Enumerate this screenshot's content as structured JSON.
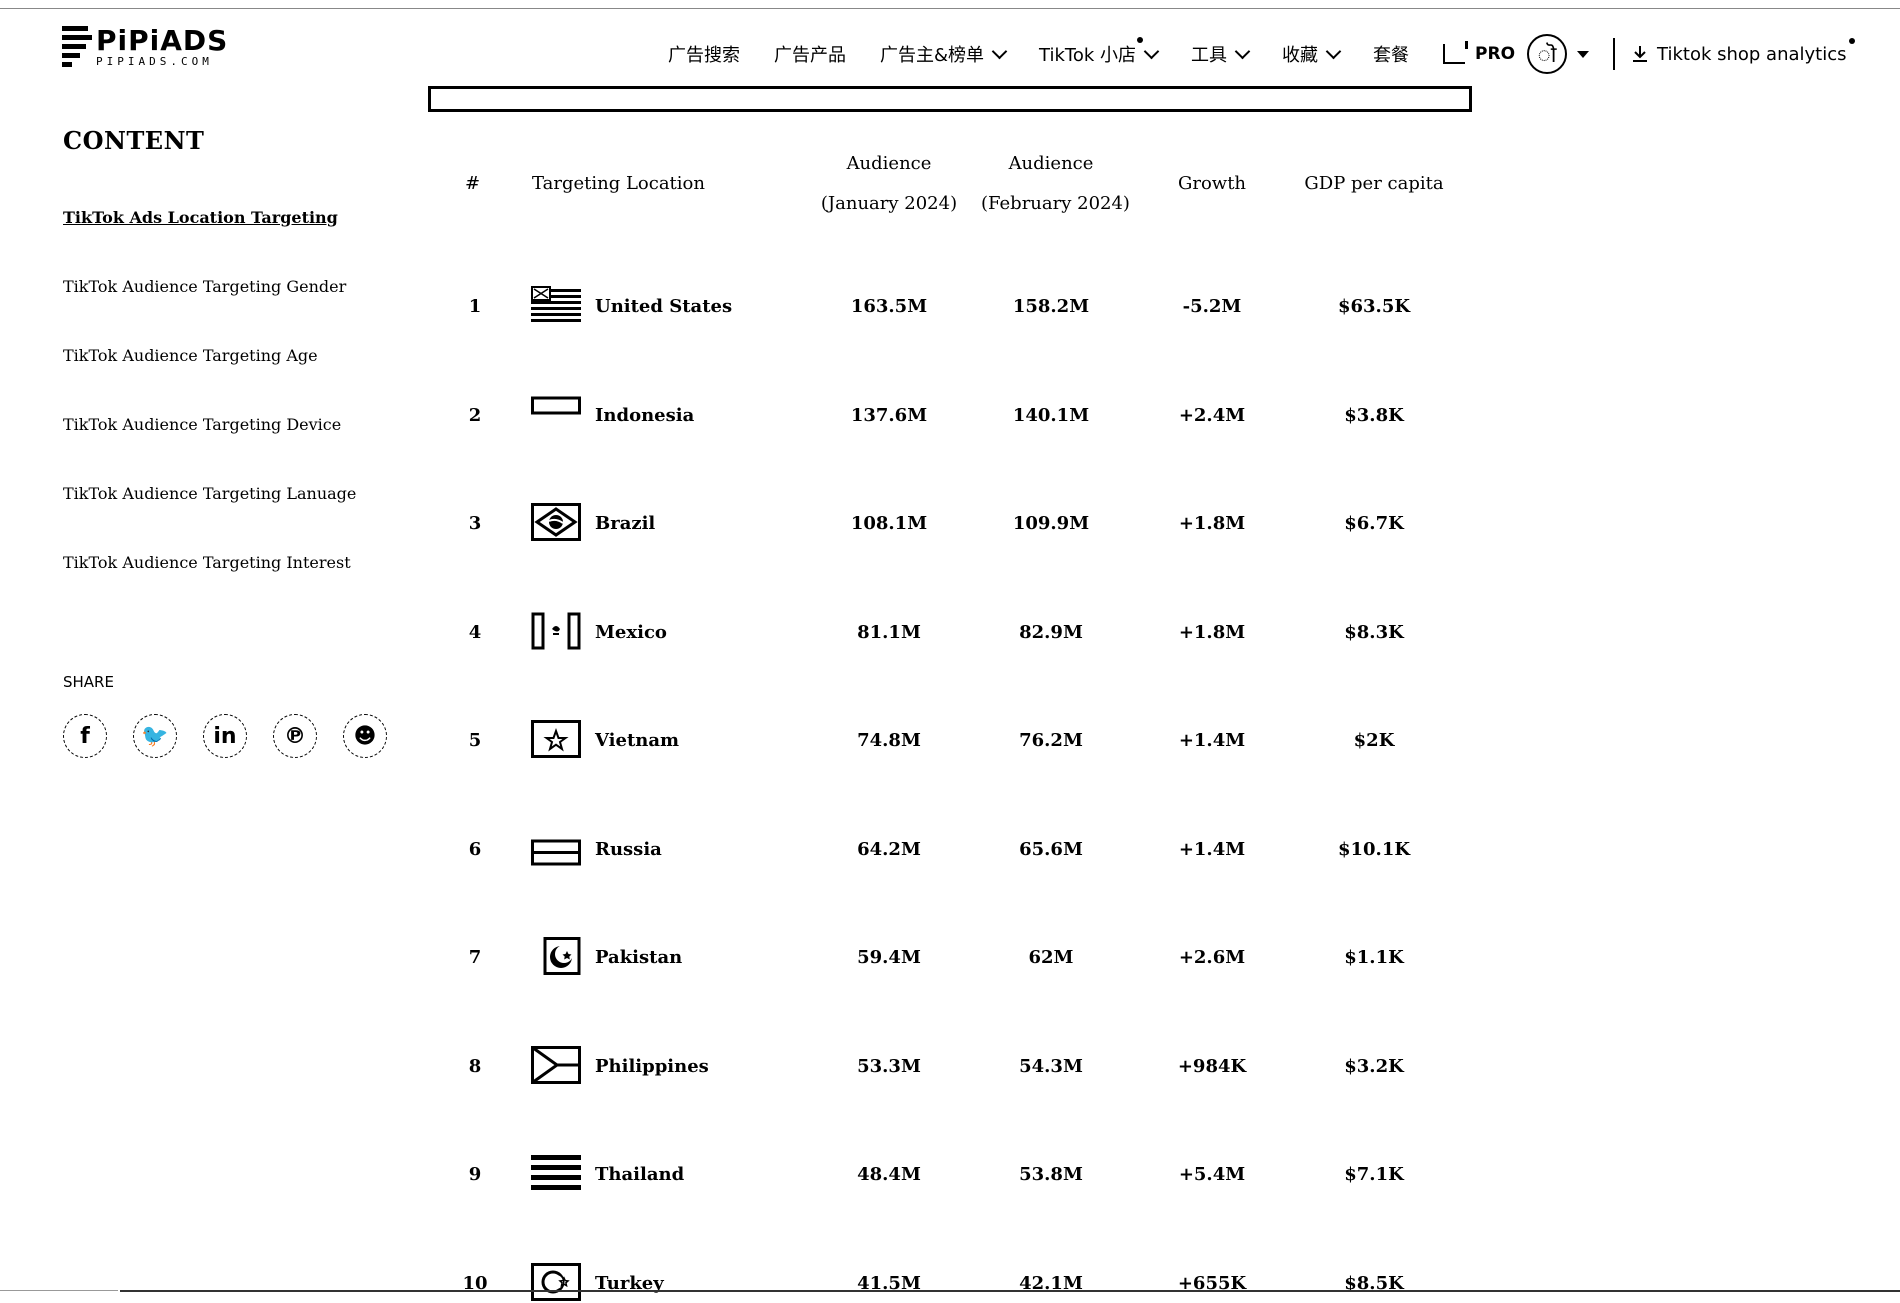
{
  "header": {
    "logo_name": "PiPiADS",
    "logo_sub": "PIPIADS.COM",
    "nav": [
      {
        "label": "广告搜索",
        "dropdown": false,
        "dot": false
      },
      {
        "label": "广告产品",
        "dropdown": false,
        "dot": false
      },
      {
        "label": "广告主&榜单",
        "dropdown": true,
        "dot": false
      },
      {
        "label": "TikTok 小店",
        "dropdown": true,
        "dot": true
      },
      {
        "label": "工具",
        "dropdown": true,
        "dot": false
      },
      {
        "label": "收藏",
        "dropdown": true,
        "dot": false
      },
      {
        "label": "套餐",
        "dropdown": false,
        "dot": false
      }
    ],
    "pro_label": "PRO",
    "avatar_glyph": "ॊ",
    "download_label": "Tiktok shop analytics"
  },
  "sidebar": {
    "content_heading": "CONTENT",
    "toc": [
      {
        "label": "TikTok Ads Location Targeting",
        "active": true
      },
      {
        "label": "TikTok Audience Targeting Gender",
        "active": false
      },
      {
        "label": "TikTok Audience Targeting Age",
        "active": false
      },
      {
        "label": "TikTok Audience Targeting Device",
        "active": false
      },
      {
        "label": "TikTok Audience Targeting Lanuage",
        "active": false
      },
      {
        "label": "TikTok Audience Targeting Interest",
        "active": false
      }
    ],
    "share_heading": "SHARE",
    "share_icons": [
      {
        "name": "facebook-icon",
        "glyph": "f"
      },
      {
        "name": "twitter-icon",
        "glyph": "🐦"
      },
      {
        "name": "linkedin-icon",
        "glyph": "in"
      },
      {
        "name": "pinterest-icon",
        "glyph": "℗"
      },
      {
        "name": "reddit-icon",
        "glyph": "☻"
      }
    ]
  },
  "table": {
    "headers": {
      "num": "#",
      "location": "Targeting Location",
      "aud_jan_1": "Audience",
      "aud_jan_2": "(January 2024)",
      "aud_feb_1": "Audience",
      "aud_feb_2": "(February 2024)",
      "growth": "Growth",
      "gdp": "GDP per capita"
    },
    "rows": [
      {
        "num": "1",
        "country": "United States",
        "flag": "us-flag-icon",
        "jan": "163.5M",
        "feb": "158.2M",
        "growth": "-5.2M",
        "gdp": "$63.5K"
      },
      {
        "num": "2",
        "country": "Indonesia",
        "flag": "indonesia-flag-icon",
        "jan": "137.6M",
        "feb": "140.1M",
        "growth": "+2.4M",
        "gdp": "$3.8K"
      },
      {
        "num": "3",
        "country": "Brazil",
        "flag": "brazil-flag-icon",
        "jan": "108.1M",
        "feb": "109.9M",
        "growth": "+1.8M",
        "gdp": "$6.7K"
      },
      {
        "num": "4",
        "country": "Mexico",
        "flag": "mexico-flag-icon",
        "jan": "81.1M",
        "feb": "82.9M",
        "growth": "+1.8M",
        "gdp": "$8.3K"
      },
      {
        "num": "5",
        "country": "Vietnam",
        "flag": "vietnam-flag-icon",
        "jan": "74.8M",
        "feb": "76.2M",
        "growth": "+1.4M",
        "gdp": "$2K"
      },
      {
        "num": "6",
        "country": "Russia",
        "flag": "russia-flag-icon",
        "jan": "64.2M",
        "feb": "65.6M",
        "growth": "+1.4M",
        "gdp": "$10.1K"
      },
      {
        "num": "7",
        "country": "Pakistan",
        "flag": "pakistan-flag-icon",
        "jan": "59.4M",
        "feb": "62M",
        "growth": "+2.6M",
        "gdp": "$1.1K"
      },
      {
        "num": "8",
        "country": "Philippines",
        "flag": "philippines-flag-icon",
        "jan": "53.3M",
        "feb": "54.3M",
        "growth": "+984K",
        "gdp": "$3.2K"
      },
      {
        "num": "9",
        "country": "Thailand",
        "flag": "thailand-flag-icon",
        "jan": "48.4M",
        "feb": "53.8M",
        "growth": "+5.4M",
        "gdp": "$7.1K"
      },
      {
        "num": "10",
        "country": "Turkey",
        "flag": "turkey-flag-icon",
        "jan": "41.5M",
        "feb": "42.1M",
        "growth": "+655K",
        "gdp": "$8.5K"
      }
    ]
  }
}
